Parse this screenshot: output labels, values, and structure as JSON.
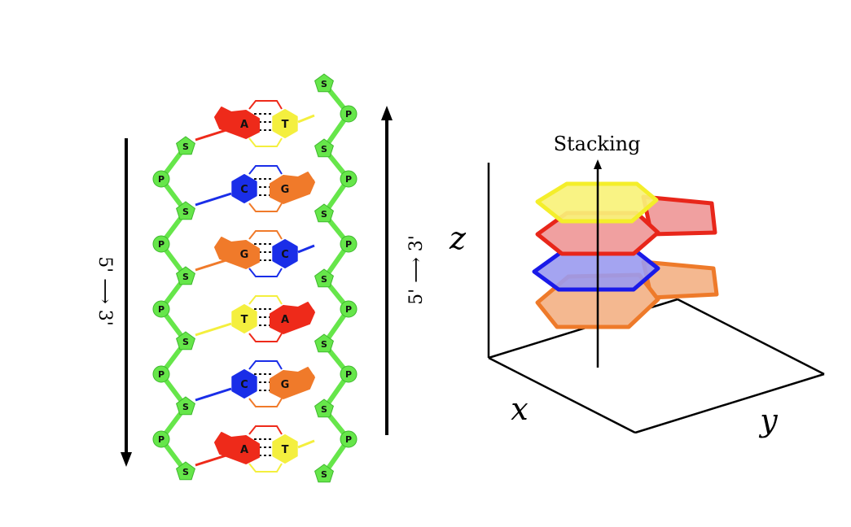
{
  "dna": {
    "left_direction": "5' ⟶ 3'",
    "right_direction": "5' ⟶ 3'",
    "sugar_label": "S",
    "phosphate_label": "P",
    "pairs": [
      {
        "left": "A",
        "right": "T"
      },
      {
        "left": "C",
        "right": "G"
      },
      {
        "left": "G",
        "right": "C"
      },
      {
        "left": "T",
        "right": "A"
      },
      {
        "left": "C",
        "right": "G"
      },
      {
        "left": "A",
        "right": "T"
      }
    ],
    "colors": {
      "backbone": "#66e64a",
      "A": "#ee2a1a",
      "T": "#f4ef3e",
      "C": "#1a2ee8",
      "G": "#f07a2a"
    }
  },
  "stacking": {
    "title": "Stacking",
    "x_label": "x",
    "y_label": "y",
    "z_label": "z",
    "layers": [
      {
        "name": "yellow",
        "fill": "#f8f27a",
        "stroke": "#f4ee2a"
      },
      {
        "name": "red",
        "fill": "#f0a0a0",
        "stroke": "#e8261a"
      },
      {
        "name": "blue",
        "fill": "#9a9af0",
        "stroke": "#1a1ae8"
      },
      {
        "name": "orange",
        "fill": "#f4b890",
        "stroke": "#ee7a2a"
      }
    ]
  }
}
